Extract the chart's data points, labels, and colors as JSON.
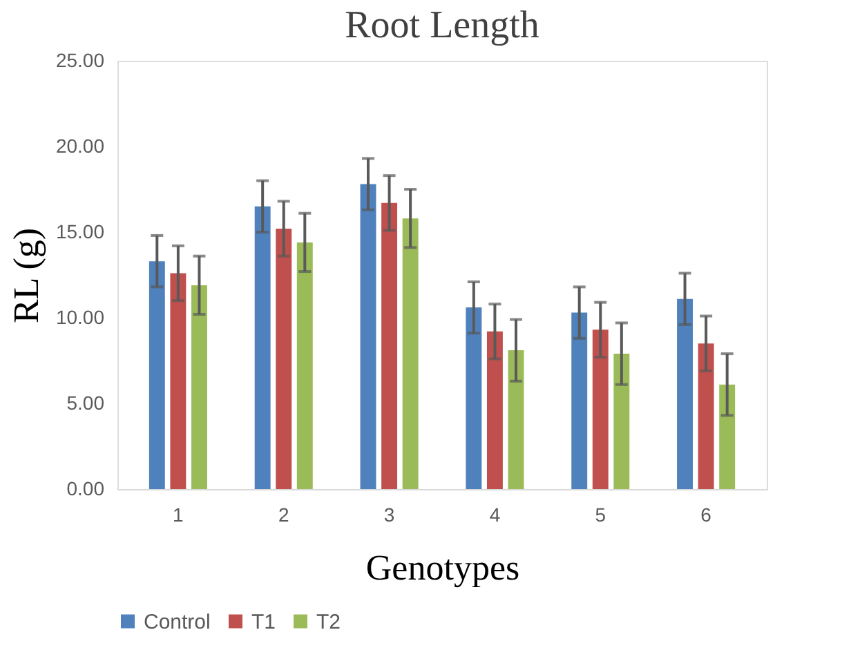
{
  "chart_data": {
    "type": "bar",
    "title": "Root Length",
    "xlabel": "Genotypes",
    "ylabel": "RL (g)",
    "categories": [
      "1",
      "2",
      "3",
      "4",
      "5",
      "6"
    ],
    "series": [
      {
        "name": "Control",
        "color": "#4f81bd",
        "values": [
          13.3,
          16.5,
          17.8,
          10.6,
          10.3,
          11.1
        ],
        "errors": [
          1.5,
          1.5,
          1.5,
          1.5,
          1.5,
          1.5
        ]
      },
      {
        "name": "T1",
        "color": "#c0504d",
        "values": [
          12.6,
          15.2,
          16.7,
          9.2,
          9.3,
          8.5
        ],
        "errors": [
          1.6,
          1.6,
          1.6,
          1.6,
          1.6,
          1.6
        ]
      },
      {
        "name": "T2",
        "color": "#9bbb59",
        "values": [
          11.9,
          14.4,
          15.8,
          8.1,
          7.9,
          6.1
        ],
        "errors": [
          1.7,
          1.7,
          1.7,
          1.8,
          1.8,
          1.8
        ]
      }
    ],
    "ylim": [
      0,
      25
    ],
    "yticks": [
      {
        "value": 0,
        "label": "0.00"
      },
      {
        "value": 5,
        "label": "5.00"
      },
      {
        "value": 10,
        "label": "10.00"
      },
      {
        "value": 15,
        "label": "15.00"
      },
      {
        "value": 20,
        "label": "20.00"
      },
      {
        "value": 25,
        "label": "25.00"
      }
    ],
    "grid": false,
    "legend": "bottom"
  }
}
